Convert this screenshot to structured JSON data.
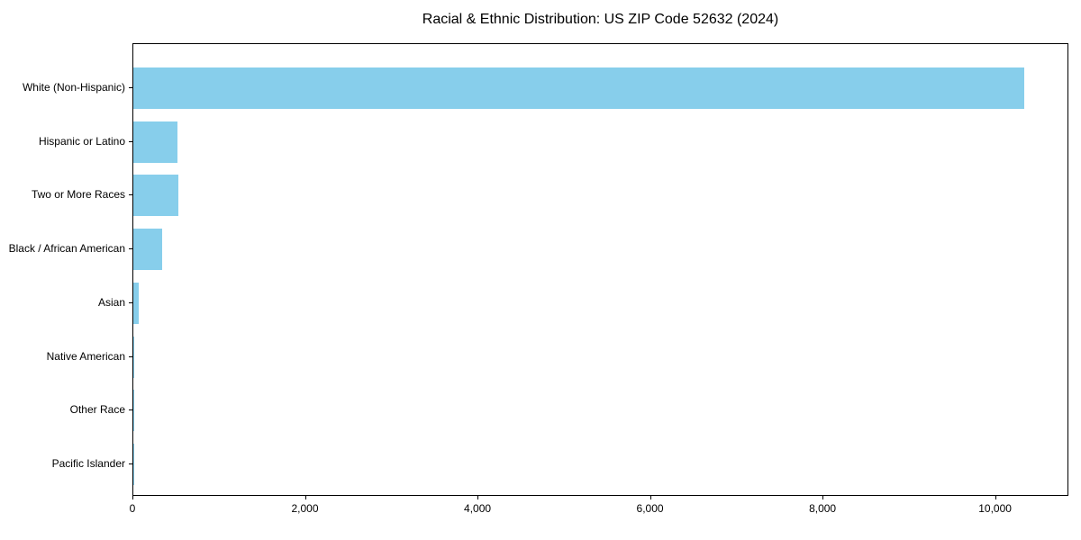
{
  "chart_data": {
    "type": "bar",
    "orientation": "horizontal",
    "title": "Racial & Ethnic Distribution: US ZIP Code 52632 (2024)",
    "categories": [
      "White (Non-Hispanic)",
      "Hispanic or Latino",
      "Two or More Races",
      "Black / African American",
      "Asian",
      "Native American",
      "Other Race",
      "Pacific Islander"
    ],
    "values": [
      10330,
      510,
      520,
      330,
      60,
      15,
      10,
      3
    ],
    "bar_color": "#87CEEB",
    "xlabel": "",
    "ylabel": "",
    "xlim": [
      0,
      10850
    ],
    "xticks": [
      {
        "value": 0,
        "label": "0"
      },
      {
        "value": 2000,
        "label": "2,000"
      },
      {
        "value": 4000,
        "label": "4,000"
      },
      {
        "value": 6000,
        "label": "6,000"
      },
      {
        "value": 8000,
        "label": "8,000"
      },
      {
        "value": 10000,
        "label": "10,000"
      }
    ],
    "grid": false,
    "legend": null,
    "background_color": "#ffffff",
    "spine_color": "#000000"
  }
}
